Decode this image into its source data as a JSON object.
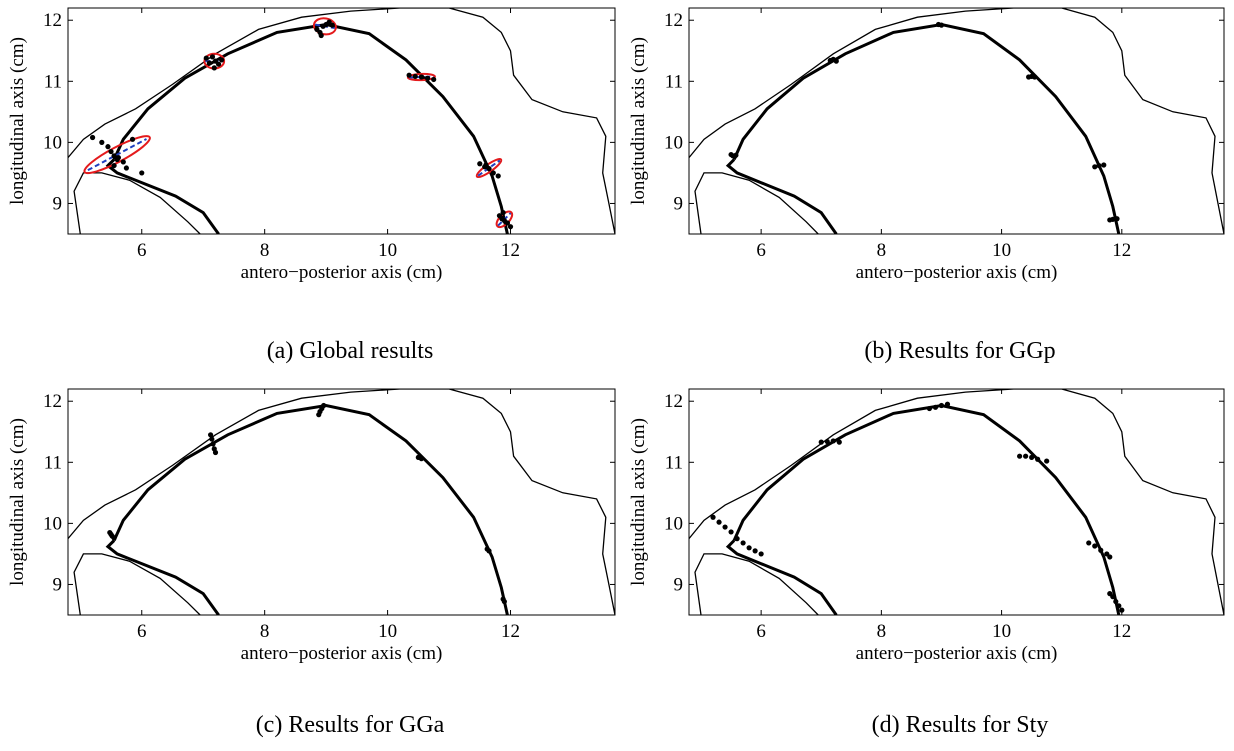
{
  "colors": {
    "ink": "#000000",
    "ellipse": "#e41a1c",
    "regression": "#1f3fbf",
    "background": "#ffffff"
  },
  "captions": [
    "(a) Global results",
    "(b) Results for GGp",
    "(c) Results for GGa",
    "(d) Results for Sty"
  ],
  "chart_data": [
    {
      "type": "scatter",
      "panel": "a",
      "xlabel": "antero−posterior axis (cm)",
      "ylabel": "longitudinal axis (cm)",
      "xlim": [
        4.8,
        13.7
      ],
      "ylim": [
        8.5,
        12.2
      ],
      "xticks": [
        6,
        8,
        10,
        12
      ],
      "yticks": [
        9,
        10,
        11,
        12
      ],
      "show_ellipses": true,
      "point_groups": [
        [
          [
            5.2,
            10.08
          ],
          [
            5.35,
            10.0
          ],
          [
            5.45,
            9.93
          ],
          [
            5.5,
            9.85
          ],
          [
            5.55,
            9.78
          ],
          [
            5.6,
            9.72
          ],
          [
            5.7,
            9.68
          ],
          [
            5.55,
            9.62
          ],
          [
            5.85,
            10.05
          ],
          [
            6.0,
            9.5
          ],
          [
            5.75,
            9.58
          ],
          [
            5.62,
            9.75
          ]
        ],
        [
          [
            7.05,
            11.38
          ],
          [
            7.1,
            11.3
          ],
          [
            7.15,
            11.4
          ],
          [
            7.2,
            11.33
          ],
          [
            7.25,
            11.28
          ],
          [
            7.3,
            11.35
          ],
          [
            7.18,
            11.22
          ]
        ],
        [
          [
            8.85,
            11.85
          ],
          [
            8.9,
            11.8
          ],
          [
            8.95,
            11.9
          ],
          [
            9.0,
            11.93
          ],
          [
            9.05,
            11.97
          ],
          [
            9.1,
            11.92
          ],
          [
            8.92,
            11.75
          ]
        ],
        [
          [
            10.35,
            11.1
          ],
          [
            10.45,
            11.08
          ],
          [
            10.55,
            11.07
          ],
          [
            10.65,
            11.05
          ],
          [
            10.75,
            11.03
          ]
        ],
        [
          [
            11.5,
            9.65
          ],
          [
            11.58,
            9.6
          ],
          [
            11.65,
            9.57
          ],
          [
            11.72,
            9.5
          ],
          [
            11.8,
            9.45
          ],
          [
            11.6,
            9.63
          ]
        ],
        [
          [
            11.82,
            8.8
          ],
          [
            11.86,
            8.75
          ],
          [
            11.9,
            8.72
          ],
          [
            11.95,
            8.68
          ],
          [
            12.0,
            8.62
          ],
          [
            11.88,
            8.85
          ]
        ]
      ],
      "ellipses": [
        {
          "cx": 5.6,
          "cy": 9.8,
          "rx": 0.6,
          "ry": 0.12,
          "angle_deg": -28
        },
        {
          "cx": 7.18,
          "cy": 11.33,
          "rx": 0.16,
          "ry": 0.12,
          "angle_deg": 0
        },
        {
          "cx": 8.98,
          "cy": 11.9,
          "rx": 0.18,
          "ry": 0.13,
          "angle_deg": 10
        },
        {
          "cx": 10.55,
          "cy": 11.07,
          "rx": 0.22,
          "ry": 0.05,
          "angle_deg": -2
        },
        {
          "cx": 11.65,
          "cy": 9.58,
          "rx": 0.24,
          "ry": 0.06,
          "angle_deg": -35
        },
        {
          "cx": 11.9,
          "cy": 8.74,
          "rx": 0.16,
          "ry": 0.08,
          "angle_deg": -45
        }
      ]
    },
    {
      "type": "scatter",
      "panel": "b",
      "xlabel": "antero−posterior axis (cm)",
      "ylabel": "longitudinal axis (cm)",
      "xlim": [
        4.8,
        13.7
      ],
      "ylim": [
        8.5,
        12.2
      ],
      "xticks": [
        6,
        8,
        10,
        12
      ],
      "yticks": [
        9,
        10,
        11,
        12
      ],
      "show_ellipses": false,
      "point_groups": [
        [
          [
            5.5,
            9.8
          ],
          [
            5.53,
            9.78
          ],
          [
            5.56,
            9.77
          ],
          [
            5.58,
            9.79
          ]
        ],
        [
          [
            7.15,
            11.34
          ],
          [
            7.2,
            11.36
          ],
          [
            7.25,
            11.33
          ]
        ],
        [
          [
            8.95,
            11.93
          ],
          [
            9.0,
            11.92
          ]
        ],
        [
          [
            10.45,
            11.07
          ],
          [
            10.5,
            11.08
          ],
          [
            10.55,
            11.07
          ]
        ],
        [
          [
            11.55,
            9.6
          ],
          [
            11.62,
            9.62
          ],
          [
            11.7,
            9.63
          ]
        ],
        [
          [
            11.8,
            8.73
          ],
          [
            11.85,
            8.74
          ],
          [
            11.92,
            8.75
          ]
        ]
      ],
      "ellipses": []
    },
    {
      "type": "scatter",
      "panel": "c",
      "xlabel": "antero−posterior axis (cm)",
      "ylabel": "longitudinal axis (cm)",
      "xlim": [
        4.8,
        13.7
      ],
      "ylim": [
        8.5,
        12.2
      ],
      "xticks": [
        6,
        8,
        10,
        12
      ],
      "yticks": [
        9,
        10,
        11,
        12
      ],
      "show_ellipses": false,
      "point_groups": [
        [
          [
            5.48,
            9.85
          ],
          [
            5.5,
            9.82
          ],
          [
            5.52,
            9.79
          ],
          [
            5.55,
            9.76
          ]
        ],
        [
          [
            7.12,
            11.45
          ],
          [
            7.14,
            11.38
          ],
          [
            7.16,
            11.3
          ],
          [
            7.18,
            11.22
          ],
          [
            7.2,
            11.16
          ]
        ],
        [
          [
            8.88,
            11.78
          ],
          [
            8.9,
            11.83
          ],
          [
            8.93,
            11.88
          ],
          [
            8.96,
            11.93
          ]
        ],
        [
          [
            10.5,
            11.08
          ],
          [
            10.55,
            11.06
          ]
        ],
        [
          [
            11.62,
            9.58
          ],
          [
            11.65,
            9.55
          ]
        ],
        [
          [
            11.88,
            8.76
          ],
          [
            11.9,
            8.72
          ]
        ]
      ],
      "ellipses": []
    },
    {
      "type": "scatter",
      "panel": "d",
      "xlabel": "antero−posterior axis (cm)",
      "ylabel": "longitudinal axis (cm)",
      "xlim": [
        4.8,
        13.7
      ],
      "ylim": [
        8.5,
        12.2
      ],
      "xticks": [
        6,
        8,
        10,
        12
      ],
      "yticks": [
        9,
        10,
        11,
        12
      ],
      "show_ellipses": false,
      "point_groups": [
        [
          [
            5.2,
            10.1
          ],
          [
            5.3,
            10.02
          ],
          [
            5.4,
            9.94
          ],
          [
            5.5,
            9.86
          ],
          [
            5.6,
            9.75
          ],
          [
            5.7,
            9.68
          ],
          [
            5.8,
            9.6
          ],
          [
            5.9,
            9.55
          ],
          [
            6.0,
            9.5
          ]
        ],
        [
          [
            7.0,
            11.33
          ],
          [
            7.1,
            11.34
          ],
          [
            7.2,
            11.35
          ],
          [
            7.3,
            11.33
          ]
        ],
        [
          [
            8.8,
            11.88
          ],
          [
            8.9,
            11.9
          ],
          [
            9.0,
            11.93
          ],
          [
            9.1,
            11.95
          ]
        ],
        [
          [
            10.3,
            11.1
          ],
          [
            10.4,
            11.1
          ],
          [
            10.5,
            11.08
          ],
          [
            10.6,
            11.05
          ],
          [
            10.75,
            11.02
          ]
        ],
        [
          [
            11.45,
            9.68
          ],
          [
            11.55,
            9.63
          ],
          [
            11.65,
            9.56
          ],
          [
            11.75,
            9.5
          ],
          [
            11.8,
            9.45
          ]
        ],
        [
          [
            11.8,
            8.85
          ],
          [
            11.85,
            8.8
          ],
          [
            11.9,
            8.72
          ],
          [
            11.95,
            8.65
          ],
          [
            12.0,
            8.58
          ]
        ]
      ],
      "ellipses": []
    }
  ]
}
